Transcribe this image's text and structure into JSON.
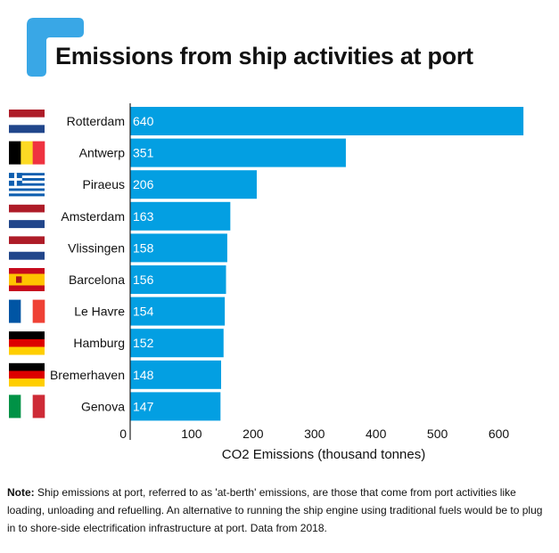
{
  "title": "Emissions from ship activities at port",
  "note": {
    "label": "Note:",
    "text": " Ship emissions at port, referred to as 'at-berth' emissions, are  those that come from port activities like loading, unloading and refuelling. An alternative to running the ship engine using traditional fuels would be to plug in to shore-side electrification infrastructure at port. Data from 2018."
  },
  "colors": {
    "bar": "#039fe2",
    "accent": "#39a7e6",
    "axis": "#222222",
    "text": "#111111"
  },
  "chart_data": {
    "type": "bar",
    "orientation": "horizontal",
    "title": "Emissions from ship activities at port",
    "xlabel": "CO2 Emissions (thousand tonnes)",
    "ylabel": "",
    "xlim": [
      0,
      650
    ],
    "xticks": [
      0,
      100,
      200,
      300,
      400,
      500,
      600
    ],
    "grid": false,
    "categories": [
      "Rotterdam",
      "Antwerp",
      "Piraeus",
      "Amsterdam",
      "Vlissingen",
      "Barcelona",
      "Le Havre",
      "Hamburg",
      "Bremerhaven",
      "Genova"
    ],
    "values": [
      640,
      351,
      206,
      163,
      158,
      156,
      154,
      152,
      148,
      147
    ],
    "value_labels": [
      "640",
      "351",
      "206",
      "163",
      "158",
      "156",
      "154",
      "152",
      "148",
      "147"
    ],
    "flags": [
      "netherlands-flag-icon",
      "belgium-flag-icon",
      "greece-flag-icon",
      "netherlands-flag-icon",
      "netherlands-flag-icon",
      "spain-flag-icon",
      "france-flag-icon",
      "germany-flag-icon",
      "germany-flag-icon",
      "italy-flag-icon"
    ]
  }
}
